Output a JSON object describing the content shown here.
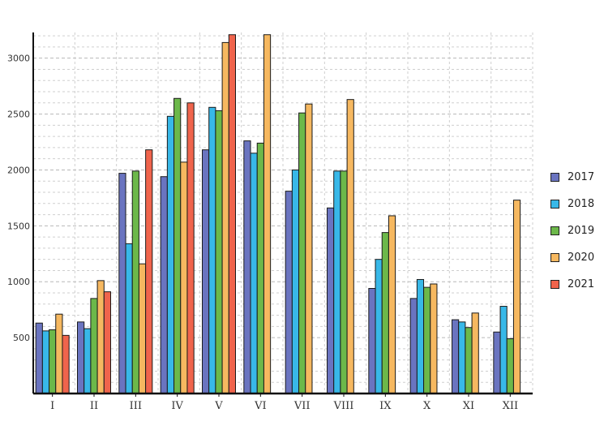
{
  "chart_data": {
    "type": "bar",
    "title": "",
    "xlabel": "",
    "ylabel": "",
    "categories": [
      "I",
      "II",
      "III",
      "IV",
      "V",
      "VI",
      "VII",
      "VIII",
      "IX",
      "X",
      "XI",
      "XII"
    ],
    "ylim": [
      0,
      3230
    ],
    "yticks": [
      500,
      1000,
      1500,
      2000,
      2500,
      3000
    ],
    "grid": true,
    "legend_position": "right",
    "series": [
      {
        "name": "2017",
        "color": "#6a74c0",
        "values": [
          630,
          640,
          1970,
          1940,
          2180,
          2260,
          1810,
          1660,
          940,
          850,
          660,
          550
        ]
      },
      {
        "name": "2018",
        "color": "#38b8e8",
        "values": [
          560,
          580,
          1340,
          2480,
          2560,
          2150,
          2000,
          1990,
          1200,
          1020,
          640,
          780
        ]
      },
      {
        "name": "2019",
        "color": "#6cb84a",
        "values": [
          570,
          850,
          1990,
          2640,
          2530,
          2240,
          2510,
          1990,
          1440,
          950,
          590,
          490
        ]
      },
      {
        "name": "2020",
        "color": "#f6b860",
        "values": [
          710,
          1010,
          1160,
          2070,
          3140,
          3210,
          2590,
          2630,
          1590,
          980,
          720,
          1730
        ]
      },
      {
        "name": "2021",
        "color": "#f0644c",
        "values": [
          520,
          910,
          2180,
          2600,
          3210,
          null,
          null,
          null,
          null,
          null,
          null,
          null
        ]
      }
    ]
  }
}
